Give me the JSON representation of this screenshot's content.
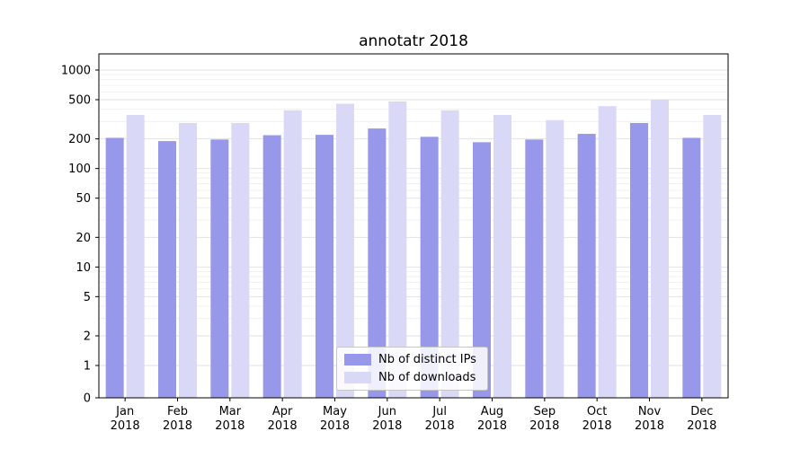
{
  "title": "annotatr 2018",
  "chart_data": {
    "type": "bar",
    "title": "annotatr 2018",
    "xlabel": "",
    "ylabel": "",
    "y_scale": "symlog",
    "ylim": [
      0,
      1400
    ],
    "y_ticks": [
      0,
      1,
      2,
      5,
      10,
      20,
      50,
      100,
      200,
      500,
      1000
    ],
    "grid": "horizontal, major and log-minor, light gray",
    "months": [
      "Jan",
      "Feb",
      "Mar",
      "Apr",
      "May",
      "Jun",
      "Jul",
      "Aug",
      "Sep",
      "Oct",
      "Nov",
      "Dec"
    ],
    "year_label": "2018",
    "categories": [
      "Jan 2018",
      "Feb 2018",
      "Mar 2018",
      "Apr 2018",
      "May 2018",
      "Jun 2018",
      "Jul 2018",
      "Aug 2018",
      "Sep 2018",
      "Oct 2018",
      "Nov 2018",
      "Dec 2018"
    ],
    "series": [
      {
        "name": "Nb of distinct IPs",
        "color": "#9898ea",
        "values": [
          205,
          190,
          197,
          218,
          220,
          255,
          210,
          185,
          197,
          225,
          290,
          205
        ]
      },
      {
        "name": "Nb of downloads",
        "color": "#d9d9f7",
        "values": [
          350,
          290,
          290,
          390,
          455,
          480,
          390,
          350,
          310,
          430,
          500,
          350
        ]
      }
    ],
    "legend": {
      "position": "lower center, inside plot",
      "items": [
        "Nb of distinct IPs",
        "Nb of downloads"
      ]
    },
    "colors": {
      "background": "#ffffff",
      "plot_border": "#000000",
      "major_grid": "#e2e2e2",
      "minor_grid": "#f0f0f0",
      "tick_text": "#000000"
    }
  }
}
